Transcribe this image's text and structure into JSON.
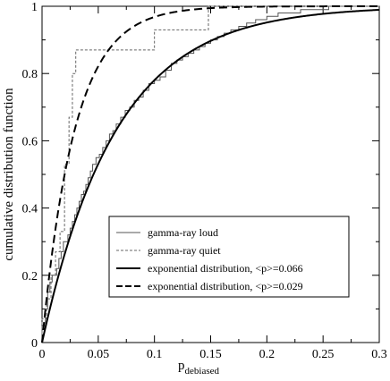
{
  "chart_data": {
    "type": "line",
    "xlabel_main": "p",
    "xlabel_sub": "debiased",
    "ylabel": "cumulative distribution function",
    "xlim": [
      0,
      0.3
    ],
    "ylim": [
      0,
      1
    ],
    "grid": false,
    "legend_position": "lower-right",
    "x_ticks": [
      {
        "value": 0,
        "label": "0"
      },
      {
        "value": 0.05,
        "label": "0.05"
      },
      {
        "value": 0.1,
        "label": "0.1"
      },
      {
        "value": 0.15,
        "label": "0.15"
      },
      {
        "value": 0.2,
        "label": "0.2"
      },
      {
        "value": 0.25,
        "label": "0.25"
      },
      {
        "value": 0.3,
        "label": "0.3"
      }
    ],
    "y_ticks": [
      {
        "value": 0,
        "label": "0"
      },
      {
        "value": 0.2,
        "label": "0.2"
      },
      {
        "value": 0.4,
        "label": "0.4"
      },
      {
        "value": 0.6,
        "label": "0.6"
      },
      {
        "value": 0.8,
        "label": "0.8"
      },
      {
        "value": 1,
        "label": "1"
      }
    ],
    "series": [
      {
        "name": "gamma-ray loud",
        "kind": "step",
        "color": "#555555",
        "dash": "none",
        "width": 1,
        "x": [
          0,
          0.003,
          0.005,
          0.007,
          0.009,
          0.011,
          0.013,
          0.015,
          0.017,
          0.019,
          0.021,
          0.023,
          0.025,
          0.027,
          0.029,
          0.031,
          0.033,
          0.035,
          0.037,
          0.039,
          0.041,
          0.043,
          0.045,
          0.048,
          0.051,
          0.054,
          0.057,
          0.06,
          0.063,
          0.066,
          0.07,
          0.074,
          0.078,
          0.082,
          0.086,
          0.09,
          0.095,
          0.1,
          0.105,
          0.11,
          0.115,
          0.12,
          0.125,
          0.13,
          0.135,
          0.14,
          0.145,
          0.15,
          0.156,
          0.162,
          0.168,
          0.175,
          0.182,
          0.19,
          0.2,
          0.21,
          0.22,
          0.23,
          0.24,
          0.255,
          0.27,
          0.3
        ],
        "y": [
          0.05,
          0.1,
          0.15,
          0.18,
          0.2,
          0.2,
          0.22,
          0.25,
          0.27,
          0.3,
          0.3,
          0.32,
          0.34,
          0.36,
          0.38,
          0.4,
          0.42,
          0.44,
          0.45,
          0.47,
          0.49,
          0.51,
          0.53,
          0.55,
          0.56,
          0.58,
          0.6,
          0.62,
          0.63,
          0.65,
          0.67,
          0.69,
          0.7,
          0.72,
          0.73,
          0.75,
          0.77,
          0.78,
          0.79,
          0.81,
          0.83,
          0.84,
          0.85,
          0.86,
          0.87,
          0.88,
          0.89,
          0.9,
          0.91,
          0.92,
          0.93,
          0.94,
          0.95,
          0.96,
          0.97,
          0.98,
          0.98,
          0.99,
          0.99,
          1.0,
          1.0,
          1.0
        ]
      },
      {
        "name": "gamma-ray quiet",
        "kind": "step",
        "color": "#666666",
        "dash": "3,2",
        "width": 1,
        "x": [
          0,
          0.004,
          0.008,
          0.012,
          0.016,
          0.02,
          0.024,
          0.027,
          0.03,
          0.1,
          0.148,
          0.3
        ],
        "y": [
          0.07,
          0.13,
          0.2,
          0.27,
          0.33,
          0.53,
          0.67,
          0.8,
          0.87,
          0.93,
          1.0,
          1.0
        ]
      },
      {
        "name": "exponential distribution, <p>=0.066",
        "kind": "exp",
        "mean": 0.066,
        "color": "#000000",
        "dash": "none",
        "width": 2
      },
      {
        "name": "exponential distribution, <p>=0.029",
        "kind": "exp",
        "mean": 0.029,
        "color": "#000000",
        "dash": "9,5",
        "width": 2
      }
    ]
  }
}
